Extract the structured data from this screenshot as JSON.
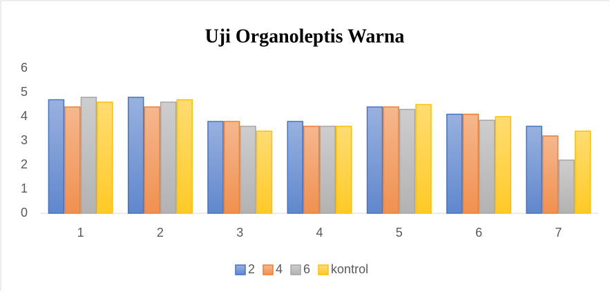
{
  "chart_data": {
    "type": "bar",
    "title": "Uji Organoleptis Warna",
    "categories": [
      "1",
      "2",
      "3",
      "4",
      "5",
      "6",
      "7"
    ],
    "series": [
      {
        "name": "2",
        "color": "#4472c4",
        "values": [
          4.7,
          4.8,
          3.8,
          3.8,
          4.4,
          4.1,
          3.6
        ]
      },
      {
        "name": "4",
        "color": "#ed7d31",
        "values": [
          4.4,
          4.4,
          3.8,
          3.6,
          4.4,
          4.1,
          3.2
        ]
      },
      {
        "name": "6",
        "color": "#a5a5a5",
        "values": [
          4.8,
          4.6,
          3.6,
          3.6,
          4.3,
          3.85,
          2.2
        ]
      },
      {
        "name": "kontrol",
        "color": "#ffc000",
        "values": [
          4.6,
          4.7,
          3.4,
          3.6,
          4.5,
          4.0,
          3.4
        ]
      }
    ],
    "ylim": [
      0,
      6
    ],
    "yticks": [
      0,
      1,
      2,
      3,
      4,
      5,
      6
    ],
    "grid": false,
    "legend": "bottom"
  }
}
